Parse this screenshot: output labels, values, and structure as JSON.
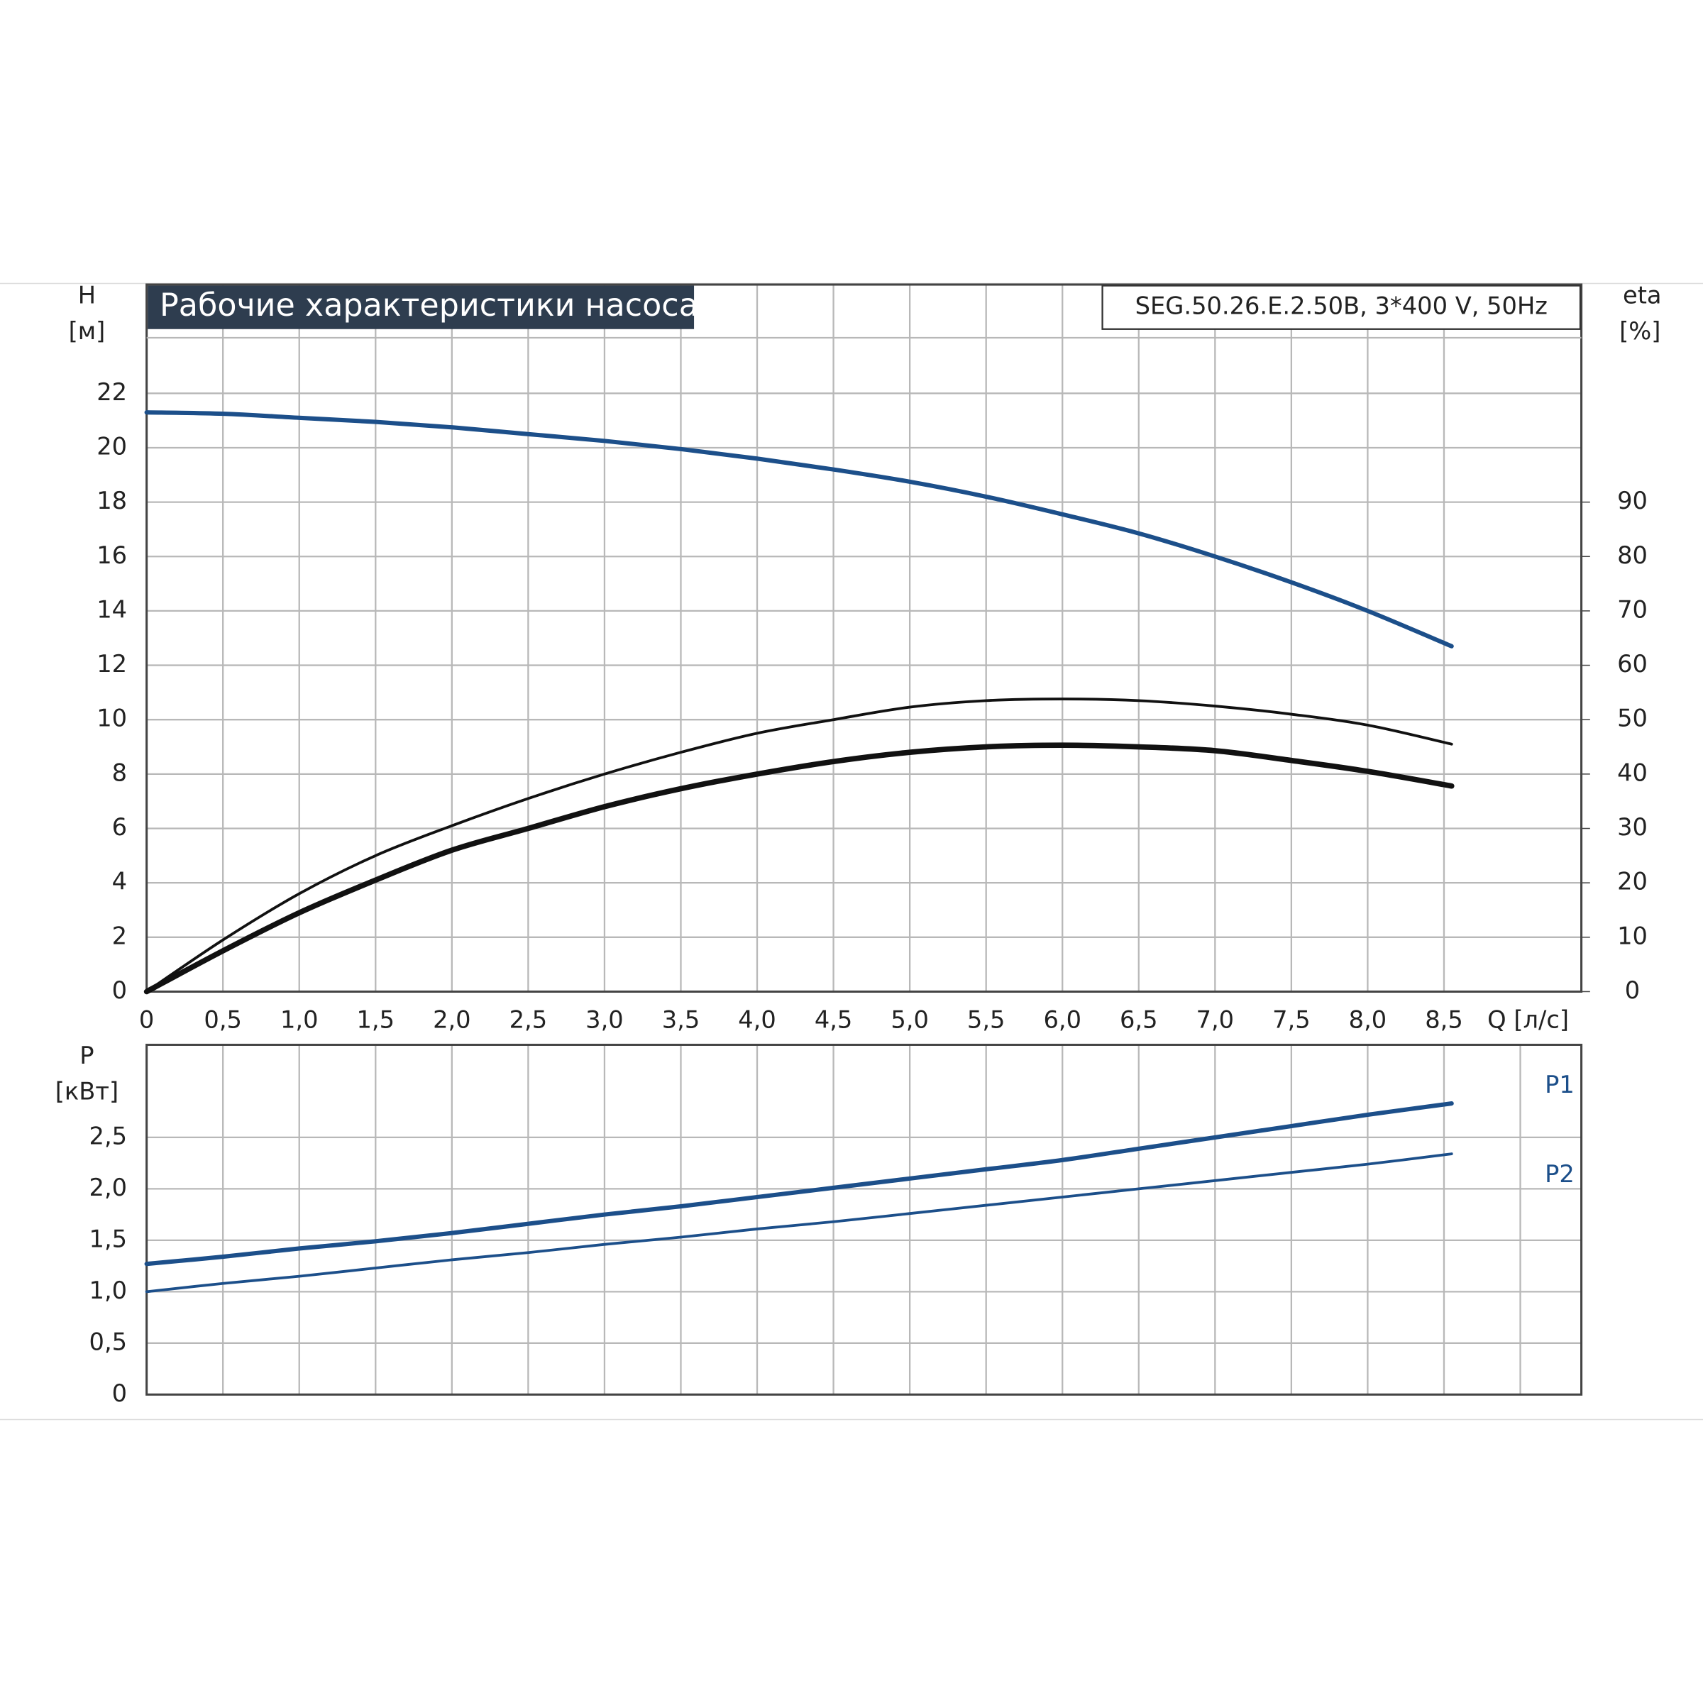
{
  "chart_data": [
    {
      "type": "line",
      "title": "Рабочие характеристики насоса",
      "subtitle": "SEG.50.26.E.2.50B, 3*400 V, 50Hz",
      "ylabel": "H",
      "yunit": "[м]",
      "y2label": "eta",
      "y2unit": "[%]",
      "xlabel": "Q [л/с]",
      "x": [
        0,
        0.5,
        1,
        1.5,
        2,
        2.5,
        3,
        3.5,
        4,
        4.5,
        5,
        5.5,
        6,
        6.5,
        7,
        7.5,
        8,
        8.55
      ],
      "xlim": [
        0,
        9.4
      ],
      "xticks": [
        0,
        {
          "value": 0.5,
          "label": "0,5"
        },
        {
          "value": 1,
          "label": "1,0"
        },
        {
          "value": 1.5,
          "label": "1,5"
        },
        {
          "value": 2,
          "label": "2,0"
        },
        {
          "value": 2.5,
          "label": "2,5"
        },
        {
          "value": 3,
          "label": "3,0"
        },
        {
          "value": 3.5,
          "label": "3,5"
        },
        {
          "value": 4,
          "label": "4,0"
        },
        {
          "value": 4.5,
          "label": "4,5"
        },
        {
          "value": 5,
          "label": "5,0"
        },
        {
          "value": 5.5,
          "label": "5,5"
        },
        {
          "value": 6,
          "label": "6,0"
        },
        {
          "value": 6.5,
          "label": "6,5"
        },
        {
          "value": 7,
          "label": "7,0"
        },
        {
          "value": 7.5,
          "label": "7,5"
        },
        {
          "value": 8,
          "label": "8,0"
        },
        {
          "value": 8.5,
          "label": "8,5"
        }
      ],
      "ylim": [
        0,
        26
      ],
      "yticks": [
        0,
        2,
        4,
        6,
        8,
        10,
        12,
        14,
        16,
        18,
        20,
        22
      ],
      "y2lim": [
        0,
        130
      ],
      "y2ticks": [
        0,
        10,
        20,
        30,
        40,
        50,
        60,
        70,
        80,
        90
      ],
      "grid": true,
      "series": [
        {
          "color": "#1c4f8a",
          "line_width": 4,
          "values": [
            21.3,
            21.25,
            21.1,
            20.95,
            20.75,
            20.5,
            20.25,
            19.95,
            19.6,
            19.2,
            18.75,
            18.2,
            17.55,
            16.85,
            16.0,
            15.05,
            14.0,
            12.7
          ]
        },
        {
          "color": "#111111",
          "line_width": 2.5,
          "axis": "y2",
          "values": [
            0,
            9.5,
            18,
            25,
            30.5,
            35.5,
            40,
            44,
            47.5,
            50,
            52.3,
            53.5,
            53.8,
            53.5,
            52.5,
            51,
            49,
            45.5
          ]
        },
        {
          "color": "#111111",
          "line_width": 5,
          "axis": "y2",
          "values": [
            0,
            7.5,
            14.5,
            20.5,
            26,
            30,
            34,
            37.3,
            40,
            42.3,
            44,
            45,
            45.3,
            45,
            44.3,
            42.5,
            40.5,
            37.8
          ]
        }
      ]
    },
    {
      "type": "line",
      "ylabel": "P",
      "yunit": "[кВт]",
      "x": [
        0,
        0.5,
        1,
        1.5,
        2,
        2.5,
        3,
        3.5,
        4,
        4.5,
        5,
        5.5,
        6,
        6.5,
        7,
        7.5,
        8,
        8.55
      ],
      "xlim": [
        0,
        9.4
      ],
      "xticks": [
        0,
        0.5,
        1,
        1.5,
        2,
        2.5,
        3,
        3.5,
        4,
        4.5,
        5,
        5.5,
        6,
        6.5,
        7,
        7.5,
        8,
        8.5,
        9
      ],
      "ylim": [
        0,
        3.4
      ],
      "yticks": [
        0,
        {
          "value": 0.5,
          "label": "0,5"
        },
        {
          "value": 1,
          "label": "1,0"
        },
        {
          "value": 1.5,
          "label": "1,5"
        },
        {
          "value": 2,
          "label": "2,0"
        },
        {
          "value": 2.5,
          "label": "2,5"
        }
      ],
      "grid": true,
      "series": [
        {
          "name": "P1",
          "color": "#1c4f8a",
          "line_width": 4,
          "values": [
            1.27,
            1.34,
            1.42,
            1.49,
            1.57,
            1.66,
            1.75,
            1.83,
            1.92,
            2.01,
            2.1,
            2.19,
            2.28,
            2.39,
            2.5,
            2.61,
            2.72,
            2.83
          ]
        },
        {
          "name": "P2",
          "color": "#1c4f8a",
          "line_width": 2.5,
          "values": [
            1.0,
            1.08,
            1.15,
            1.23,
            1.31,
            1.38,
            1.46,
            1.53,
            1.61,
            1.68,
            1.76,
            1.84,
            1.92,
            2.0,
            2.08,
            2.16,
            2.24,
            2.34
          ]
        }
      ]
    }
  ]
}
